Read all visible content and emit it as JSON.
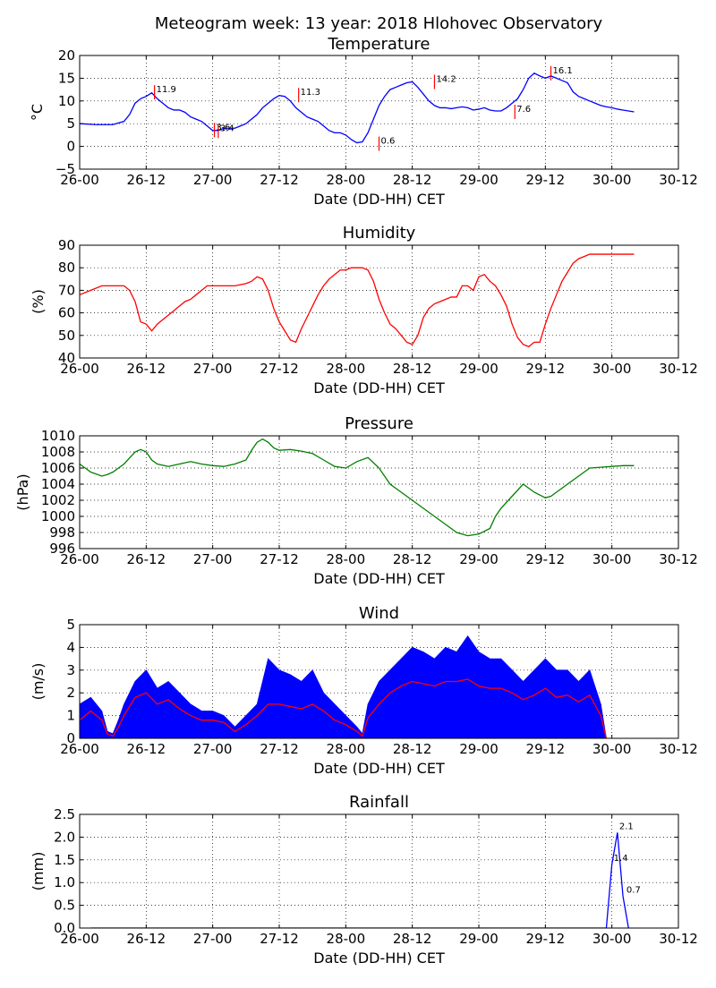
{
  "page": {
    "title": "Meteogram week: 13 year: 2018 Hlohovec Observatory"
  },
  "chart_data": [
    {
      "type": "line",
      "title": "Temperature",
      "xlabel": "Date (DD-HH) CET",
      "ylabel": "°C",
      "x_tick_labels": [
        "26-00",
        "26-12",
        "27-00",
        "27-12",
        "28-00",
        "28-12",
        "29-00",
        "29-12",
        "30-00",
        "30-12"
      ],
      "xlim_hours": [
        0,
        108
      ],
      "y_ticks": [
        -5,
        0,
        5,
        10,
        15,
        20
      ],
      "ylim": [
        -5,
        20
      ],
      "grid": true,
      "series": [
        {
          "color": "#0000ff",
          "x_hours": [
            0,
            3,
            6,
            8,
            9,
            10,
            11,
            12,
            13,
            14,
            15,
            16,
            17,
            18,
            19,
            20,
            21,
            22,
            23,
            24,
            25,
            26,
            27,
            28,
            29,
            30,
            31,
            32,
            33,
            34,
            35,
            36,
            37,
            38,
            39,
            40,
            41,
            42,
            43,
            44,
            45,
            46,
            47,
            48,
            49,
            50,
            51,
            52,
            53,
            54,
            55,
            56,
            57,
            58,
            59,
            60,
            61,
            62,
            63,
            64,
            65,
            66,
            67,
            68,
            69,
            70,
            71,
            72,
            73,
            74,
            75,
            76,
            77,
            78,
            79,
            80,
            81,
            82,
            83,
            84,
            85,
            86,
            87,
            88,
            89,
            90,
            91,
            92,
            93,
            94,
            95,
            96,
            97,
            98,
            99,
            100
          ],
          "values": [
            5,
            4.8,
            4.8,
            5.5,
            7,
            9.5,
            10.5,
            11,
            11.8,
            10.5,
            9.5,
            8.5,
            8,
            8,
            7.5,
            6.5,
            6,
            5.5,
            4.5,
            3.5,
            3.5,
            4,
            4,
            4,
            4.5,
            5,
            6,
            7,
            8.5,
            9.5,
            10.5,
            11.2,
            11,
            10,
            8.5,
            7.5,
            6.5,
            6,
            5.5,
            4.5,
            3.5,
            3,
            3,
            2.5,
            1.5,
            0.8,
            1,
            3,
            6,
            9,
            11,
            12.5,
            13,
            13.5,
            14,
            14.2,
            13,
            11.5,
            10,
            9,
            8.5,
            8.5,
            8.3,
            8.5,
            8.7,
            8.5,
            8,
            8.2,
            8.5,
            8,
            7.8,
            7.8,
            8.5,
            9.5,
            10.5,
            12.5,
            15,
            16.1,
            15.5,
            15,
            15.5,
            15,
            14.5,
            14,
            12,
            11,
            10.5,
            10,
            9.5,
            9,
            8.7,
            8.5,
            8.2,
            8,
            7.8,
            7.6
          ]
        }
      ],
      "annotations": [
        {
          "x": 13.5,
          "y": 11.9,
          "label": "11.9"
        },
        {
          "x": 24.3,
          "y": 3.6,
          "label": "3.6"
        },
        {
          "x": 25,
          "y": 3.4,
          "label": "3.4"
        },
        {
          "x": 39.5,
          "y": 11.3,
          "label": "11.3"
        },
        {
          "x": 54,
          "y": 0.6,
          "label": "0.6"
        },
        {
          "x": 64,
          "y": 14.2,
          "label": "14.2"
        },
        {
          "x": 78.5,
          "y": 7.6,
          "label": "7.6"
        },
        {
          "x": 85,
          "y": 16.1,
          "label": "16.1"
        }
      ]
    },
    {
      "type": "line",
      "title": "Humidity",
      "xlabel": "Date (DD-HH) CET",
      "ylabel": "(%)",
      "x_tick_labels": [
        "26-00",
        "26-12",
        "27-00",
        "27-12",
        "28-00",
        "28-12",
        "29-00",
        "29-12",
        "30-00",
        "30-12"
      ],
      "xlim_hours": [
        0,
        108
      ],
      "y_ticks": [
        40,
        50,
        60,
        70,
        80,
        90
      ],
      "ylim": [
        40,
        90
      ],
      "grid": true,
      "series": [
        {
          "color": "#ff0000",
          "x_hours": [
            0,
            2,
            4,
            6,
            8,
            9,
            10,
            11,
            12,
            13,
            14,
            15,
            16,
            17,
            18,
            19,
            20,
            21,
            22,
            23,
            24,
            25,
            26,
            28,
            30,
            31,
            32,
            33,
            34,
            35,
            36,
            37,
            38,
            39,
            40,
            41,
            42,
            43,
            44,
            45,
            46,
            47,
            48,
            49,
            50,
            51,
            52,
            53,
            54,
            55,
            56,
            57,
            58,
            59,
            60,
            61,
            62,
            63,
            64,
            65,
            66,
            67,
            68,
            69,
            70,
            71,
            72,
            73,
            74,
            75,
            76,
            77,
            78,
            79,
            80,
            81,
            82,
            83,
            84,
            85,
            86,
            87,
            88,
            89,
            90,
            91,
            92,
            93,
            94,
            95,
            96,
            97,
            98,
            99,
            100
          ],
          "values": [
            68,
            70,
            72,
            72,
            72,
            70,
            65,
            56,
            55,
            52,
            55,
            57,
            59,
            61,
            63,
            65,
            66,
            68,
            70,
            72,
            72,
            72,
            72,
            72,
            73,
            74,
            76,
            75,
            70,
            62,
            56,
            52,
            48,
            47,
            53,
            58,
            63,
            68,
            72,
            75,
            77,
            79,
            79,
            80,
            80,
            80,
            79,
            74,
            66,
            60,
            55,
            53,
            50,
            47,
            46,
            50,
            58,
            62,
            64,
            65,
            66,
            67,
            67,
            72,
            72,
            70,
            76,
            77,
            74,
            72,
            68,
            63,
            55,
            49,
            46,
            45,
            47,
            47,
            55,
            62,
            68,
            74,
            78,
            82,
            84,
            85,
            86,
            86,
            86,
            86,
            86,
            86,
            86,
            86,
            86
          ]
        }
      ]
    },
    {
      "type": "line",
      "title": "Pressure",
      "xlabel": "Date (DD-HH) CET",
      "ylabel": "(hPa)",
      "x_tick_labels": [
        "26-00",
        "26-12",
        "27-00",
        "27-12",
        "28-00",
        "28-12",
        "29-00",
        "29-12",
        "30-00",
        "30-12"
      ],
      "xlim_hours": [
        0,
        108
      ],
      "y_ticks": [
        996,
        998,
        1000,
        1002,
        1004,
        1006,
        1008,
        1010
      ],
      "ylim": [
        996,
        1010
      ],
      "grid": true,
      "series": [
        {
          "color": "#008000",
          "x_hours": [
            0,
            2,
            4,
            5,
            6,
            8,
            10,
            11,
            12,
            13,
            14,
            16,
            18,
            20,
            22,
            24,
            26,
            28,
            30,
            31,
            32,
            33,
            34,
            35,
            36,
            38,
            40,
            42,
            44,
            46,
            48,
            50,
            52,
            54,
            56,
            58,
            59,
            60,
            62,
            64,
            66,
            68,
            70,
            72,
            74,
            75,
            76,
            78,
            80,
            81,
            82,
            84,
            85,
            86,
            88,
            90,
            92,
            94,
            96,
            98,
            100
          ],
          "values": [
            1006.5,
            1005.5,
            1005,
            1005.2,
            1005.5,
            1006.5,
            1008,
            1008.3,
            1008,
            1007,
            1006.5,
            1006.2,
            1006.5,
            1006.8,
            1006.5,
            1006.3,
            1006.2,
            1006.5,
            1007,
            1008.2,
            1009.2,
            1009.6,
            1009.2,
            1008.5,
            1008.2,
            1008.3,
            1008.1,
            1007.8,
            1007,
            1006.2,
            1006,
            1006.8,
            1007.3,
            1006,
            1004,
            1003,
            1002.5,
            1002,
            1001,
            1000,
            999,
            998,
            997.6,
            997.8,
            998.5,
            1000,
            1001,
            1002.5,
            1004,
            1003.5,
            1003,
            1002.3,
            1002.5,
            1003,
            1004,
            1005,
            1006,
            1006.1,
            1006.2,
            1006.3,
            1006.3
          ]
        }
      ]
    },
    {
      "type": "bar",
      "title": "Wind",
      "xlabel": "Date (DD-HH) CET",
      "ylabel": "(m/s)",
      "x_tick_labels": [
        "26-00",
        "26-12",
        "27-00",
        "27-12",
        "28-00",
        "28-12",
        "29-00",
        "29-12",
        "30-00",
        "30-12"
      ],
      "xlim_hours": [
        0,
        108
      ],
      "y_ticks": [
        0,
        1,
        2,
        3,
        4,
        5
      ],
      "ylim": [
        0,
        5
      ],
      "grid": true,
      "series": [
        {
          "name_hidden": "gust",
          "kind": "bars",
          "color": "#0000ff",
          "x_hours": [
            0,
            2,
            4,
            5,
            6,
            7,
            8,
            10,
            12,
            14,
            16,
            18,
            20,
            22,
            24,
            26,
            28,
            30,
            32,
            34,
            36,
            38,
            40,
            42,
            44,
            46,
            48,
            50,
            51,
            52,
            54,
            56,
            58,
            60,
            62,
            64,
            66,
            68,
            70,
            72,
            74,
            76,
            78,
            80,
            82,
            84,
            86,
            88,
            90,
            92,
            94,
            95
          ],
          "values": [
            1.5,
            1.8,
            1.2,
            0.3,
            0.2,
            0.8,
            1.5,
            2.5,
            3,
            2.2,
            2.5,
            2,
            1.5,
            1.2,
            1.2,
            1,
            0.5,
            1,
            1.5,
            3.5,
            3,
            2.8,
            2.5,
            3,
            2,
            1.5,
            1,
            0.5,
            0.2,
            1.5,
            2.5,
            3,
            3.5,
            4,
            3.8,
            3.5,
            4,
            3.8,
            4.5,
            3.8,
            3.5,
            3.5,
            3,
            2.5,
            3,
            3.5,
            3,
            3,
            2.5,
            3,
            1.5,
            0
          ]
        },
        {
          "name_hidden": "average",
          "kind": "line",
          "color": "#ff0000",
          "x_hours": [
            0,
            2,
            4,
            5,
            6,
            7,
            8,
            10,
            12,
            14,
            16,
            18,
            20,
            22,
            24,
            26,
            28,
            30,
            32,
            34,
            36,
            38,
            40,
            42,
            44,
            46,
            48,
            50,
            51,
            52,
            54,
            56,
            58,
            60,
            62,
            64,
            66,
            68,
            70,
            72,
            74,
            76,
            78,
            80,
            82,
            84,
            86,
            88,
            90,
            92,
            94,
            95
          ],
          "values": [
            0.8,
            1.2,
            0.8,
            0.2,
            0.1,
            0.5,
            1,
            1.8,
            2,
            1.5,
            1.7,
            1.3,
            1,
            0.8,
            0.8,
            0.7,
            0.3,
            0.6,
            1,
            1.5,
            1.5,
            1.4,
            1.3,
            1.5,
            1.2,
            0.8,
            0.6,
            0.3,
            0.1,
            0.9,
            1.5,
            2,
            2.3,
            2.5,
            2.4,
            2.3,
            2.5,
            2.5,
            2.6,
            2.3,
            2.2,
            2.2,
            2,
            1.7,
            1.9,
            2.2,
            1.8,
            1.9,
            1.6,
            1.9,
            1,
            0
          ]
        }
      ]
    },
    {
      "type": "line",
      "title": "Rainfall",
      "xlabel": "Date (DD-HH) CET",
      "ylabel": "(mm)",
      "x_tick_labels": [
        "26-00",
        "26-12",
        "27-00",
        "27-12",
        "28-00",
        "28-12",
        "29-00",
        "29-12",
        "30-00",
        "30-12"
      ],
      "xlim_hours": [
        0,
        108
      ],
      "y_ticks": [
        0.0,
        0.5,
        1.0,
        1.5,
        2.0,
        2.5
      ],
      "y_tick_labels": [
        "0.0",
        "0.5",
        "1.0",
        "1.5",
        "2.0",
        "2.5"
      ],
      "ylim": [
        0,
        2.5
      ],
      "grid": true,
      "series": [
        {
          "color": "#0000ff",
          "x_hours": [
            2,
            95,
            96,
            97,
            98,
            99
          ],
          "values": [
            0,
            0,
            1.4,
            2.1,
            0.7,
            0
          ]
        }
      ],
      "annotations": [
        {
          "x": 96,
          "y": 1.4,
          "label": "1.4"
        },
        {
          "x": 97,
          "y": 2.1,
          "label": "2.1"
        },
        {
          "x": 98.3,
          "y": 0.7,
          "label": "0.7"
        }
      ]
    }
  ]
}
